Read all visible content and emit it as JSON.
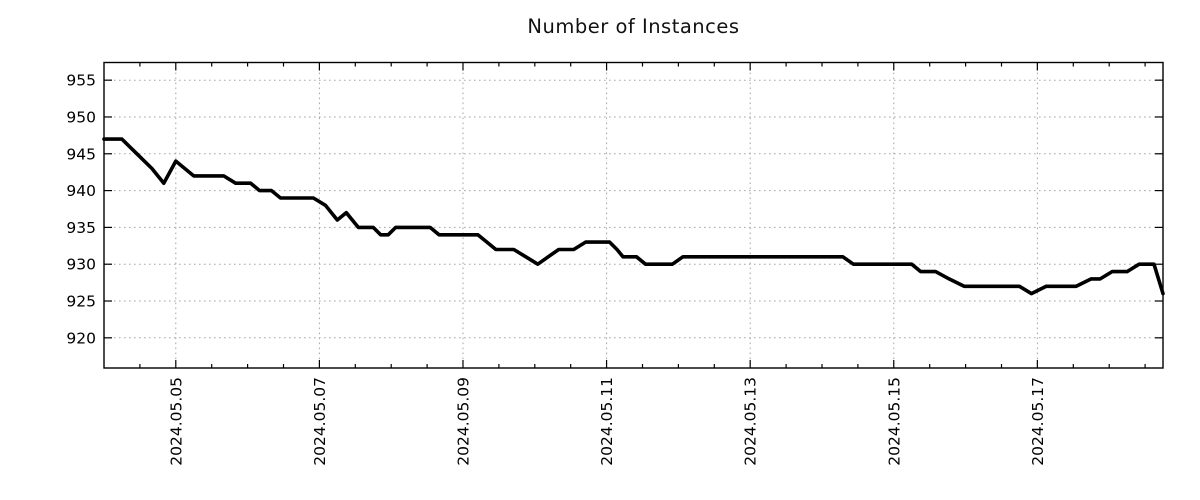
{
  "page": {
    "background": "#ffffff"
  },
  "chart_data": {
    "type": "line",
    "title": "Number of Instances",
    "xlabel": "",
    "ylabel": "",
    "legend": "none",
    "grid": {
      "on": true,
      "style": "dotted",
      "color": "#a6a6a6"
    },
    "x_axis": {
      "epoch": "2024-05-04 00:00",
      "unit": "hours",
      "range_hours": [
        0,
        354
      ],
      "tick_hours": [
        24,
        72,
        120,
        168,
        216,
        264,
        312
      ],
      "tick_labels": [
        "2024.05.05",
        "2024.05.07",
        "2024.05.09",
        "2024.05.11",
        "2024.05.13",
        "2024.05.15",
        "2024.05.17"
      ],
      "minor_tick_interval_hours": 12
    },
    "y_axis": {
      "ticks": [
        920,
        925,
        930,
        935,
        940,
        945,
        950,
        955
      ],
      "tick_labels": [
        "920",
        "925",
        "930",
        "935",
        "940",
        "945",
        "950",
        "955"
      ],
      "range": [
        915.9,
        957.4
      ]
    },
    "series": [
      {
        "name": "instances",
        "color": "#000000",
        "width": 3.6,
        "points": [
          [
            0,
            947
          ],
          [
            6,
            947
          ],
          [
            11,
            945
          ],
          [
            16,
            943
          ],
          [
            20,
            941
          ],
          [
            24,
            944
          ],
          [
            30,
            942
          ],
          [
            40,
            942
          ],
          [
            44,
            941
          ],
          [
            49,
            941
          ],
          [
            52,
            940
          ],
          [
            56,
            940
          ],
          [
            59,
            939
          ],
          [
            70,
            939
          ],
          [
            74,
            938
          ],
          [
            78,
            936
          ],
          [
            81,
            937
          ],
          [
            85,
            935
          ],
          [
            90,
            935
          ],
          [
            92.5,
            934
          ],
          [
            95,
            934
          ],
          [
            97.5,
            935
          ],
          [
            109,
            935
          ],
          [
            112,
            934
          ],
          [
            125,
            934
          ],
          [
            128,
            933
          ],
          [
            131,
            932
          ],
          [
            137,
            932
          ],
          [
            141,
            931
          ],
          [
            145,
            930
          ],
          [
            148.5,
            931
          ],
          [
            152,
            932
          ],
          [
            157,
            932
          ],
          [
            161,
            933
          ],
          [
            169,
            933
          ],
          [
            171.5,
            932
          ],
          [
            173.5,
            931
          ],
          [
            178,
            931
          ],
          [
            181,
            930
          ],
          [
            190,
            930
          ],
          [
            193.5,
            931
          ],
          [
            247,
            931
          ],
          [
            250.5,
            930
          ],
          [
            270,
            930
          ],
          [
            273,
            929
          ],
          [
            278,
            929
          ],
          [
            282.5,
            928
          ],
          [
            287.5,
            927
          ],
          [
            306,
            927
          ],
          [
            310,
            926
          ],
          [
            315,
            927
          ],
          [
            325,
            927
          ],
          [
            330,
            928
          ],
          [
            333,
            928
          ],
          [
            337,
            929
          ],
          [
            342,
            929
          ],
          [
            346,
            930
          ],
          [
            351,
            930
          ],
          [
            354,
            926
          ]
        ]
      }
    ]
  }
}
